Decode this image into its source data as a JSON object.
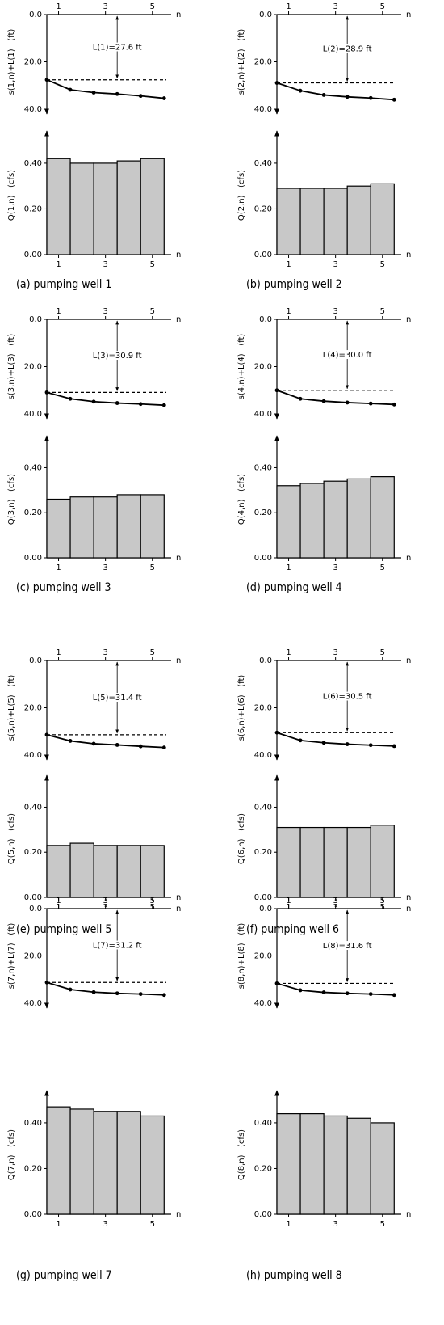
{
  "chart_data": [
    {
      "type": "line",
      "ylabel": "s(1,n)+L(1)   (ft)",
      "xlabel": "n",
      "x": [
        0.5,
        1.5,
        2.5,
        3.5,
        4.5,
        5.5
      ],
      "values": [
        27.6,
        31.8,
        33.0,
        33.6,
        34.4,
        35.4
      ],
      "reference": 27.6,
      "annotation": "L(1)=27.6 ft",
      "xlim": [
        0.5,
        5.8
      ],
      "xticks": [
        1,
        3,
        5
      ],
      "ylim": [
        0,
        40
      ],
      "yticks": [
        {
          "value": 0,
          "label": "0.0"
        },
        {
          "value": 20,
          "label": "20.0"
        },
        {
          "value": 40,
          "label": "40.0"
        }
      ],
      "invert_y": true,
      "color": "#000000"
    },
    {
      "type": "bar",
      "ylabel": "Q(1,n)   (cfs)",
      "xlabel": "n",
      "x": [
        1,
        2,
        3,
        4,
        5
      ],
      "values": [
        0.42,
        0.4,
        0.4,
        0.41,
        0.42
      ],
      "xlim": [
        0.5,
        5.8
      ],
      "xticks": [
        1,
        3,
        5
      ],
      "ylim": [
        0,
        0.52
      ],
      "yticks": [
        {
          "value": 0,
          "label": "0.00"
        },
        {
          "value": 0.2,
          "label": "0.20"
        },
        {
          "value": 0.4,
          "label": "0.40"
        }
      ],
      "color": "#c8c8c8",
      "caption": "(a) pumping well 1"
    },
    {
      "type": "line",
      "ylabel": "s(2,n)+L(2)   (ft)",
      "xlabel": "n",
      "x": [
        0.5,
        1.5,
        2.5,
        3.5,
        4.5,
        5.5
      ],
      "values": [
        28.9,
        32.2,
        34.0,
        34.8,
        35.3,
        36.0
      ],
      "reference": 28.9,
      "annotation": "L(2)=28.9 ft",
      "xlim": [
        0.5,
        5.8
      ],
      "xticks": [
        1,
        3,
        5
      ],
      "ylim": [
        0,
        40
      ],
      "yticks": [
        {
          "value": 0,
          "label": "0.0"
        },
        {
          "value": 20,
          "label": "20.0"
        },
        {
          "value": 40,
          "label": "40.0"
        }
      ],
      "invert_y": true,
      "color": "#000000"
    },
    {
      "type": "bar",
      "ylabel": "Q(2,n)   (cfs)",
      "xlabel": "n",
      "x": [
        1,
        2,
        3,
        4,
        5
      ],
      "values": [
        0.29,
        0.29,
        0.29,
        0.3,
        0.31
      ],
      "xlim": [
        0.5,
        5.8
      ],
      "xticks": [
        1,
        3,
        5
      ],
      "ylim": [
        0,
        0.52
      ],
      "yticks": [
        {
          "value": 0,
          "label": "0.00"
        },
        {
          "value": 0.2,
          "label": "0.20"
        },
        {
          "value": 0.4,
          "label": "0.40"
        }
      ],
      "color": "#c8c8c8",
      "caption": "(b) pumping well 2"
    },
    {
      "type": "line",
      "ylabel": "s(3,n)+L(3)   (ft)",
      "xlabel": "n",
      "x": [
        0.5,
        1.5,
        2.5,
        3.5,
        4.5,
        5.5
      ],
      "values": [
        30.9,
        33.6,
        34.8,
        35.4,
        35.8,
        36.3
      ],
      "reference": 30.9,
      "annotation": "L(3)=30.9 ft",
      "xlim": [
        0.5,
        5.8
      ],
      "xticks": [
        1,
        3,
        5
      ],
      "ylim": [
        0,
        40
      ],
      "yticks": [
        {
          "value": 0,
          "label": "0.0"
        },
        {
          "value": 20,
          "label": "20.0"
        },
        {
          "value": 40,
          "label": "40.0"
        }
      ],
      "invert_y": true,
      "color": "#000000"
    },
    {
      "type": "bar",
      "ylabel": "Q(3,n)   (cfs)",
      "xlabel": "n",
      "x": [
        1,
        2,
        3,
        4,
        5
      ],
      "values": [
        0.26,
        0.27,
        0.27,
        0.28,
        0.28
      ],
      "xlim": [
        0.5,
        5.8
      ],
      "xticks": [
        1,
        3,
        5
      ],
      "ylim": [
        0,
        0.52
      ],
      "yticks": [
        {
          "value": 0,
          "label": "0.00"
        },
        {
          "value": 0.2,
          "label": "0.20"
        },
        {
          "value": 0.4,
          "label": "0.40"
        }
      ],
      "color": "#c8c8c8",
      "caption": "(c) pumping well 3"
    },
    {
      "type": "line",
      "ylabel": "s(4,n)+L(4)   (ft)",
      "xlabel": "n",
      "x": [
        0.5,
        1.5,
        2.5,
        3.5,
        4.5,
        5.5
      ],
      "values": [
        30.0,
        33.6,
        34.6,
        35.2,
        35.6,
        36.0
      ],
      "reference": 30.0,
      "annotation": "L(4)=30.0 ft",
      "xlim": [
        0.5,
        5.8
      ],
      "xticks": [
        1,
        3,
        5
      ],
      "ylim": [
        0,
        40
      ],
      "yticks": [
        {
          "value": 0,
          "label": "0.0"
        },
        {
          "value": 20,
          "label": "20.0"
        },
        {
          "value": 40,
          "label": "40.0"
        }
      ],
      "invert_y": true,
      "color": "#000000"
    },
    {
      "type": "bar",
      "ylabel": "Q(4,n)   (cfs)",
      "xlabel": "n",
      "x": [
        1,
        2,
        3,
        4,
        5
      ],
      "values": [
        0.32,
        0.33,
        0.34,
        0.35,
        0.36
      ],
      "xlim": [
        0.5,
        5.8
      ],
      "xticks": [
        1,
        3,
        5
      ],
      "ylim": [
        0,
        0.52
      ],
      "yticks": [
        {
          "value": 0,
          "label": "0.00"
        },
        {
          "value": 0.2,
          "label": "0.20"
        },
        {
          "value": 0.4,
          "label": "0.40"
        }
      ],
      "color": "#c8c8c8",
      "caption": "(d) pumping well 4"
    },
    {
      "type": "line",
      "ylabel": "s(5,n)+L(5)   (ft)",
      "xlabel": "n",
      "x": [
        0.5,
        1.5,
        2.5,
        3.5,
        4.5,
        5.5
      ],
      "values": [
        31.4,
        34.0,
        35.2,
        35.7,
        36.3,
        36.8
      ],
      "reference": 31.4,
      "annotation": "L(5)=31.4 ft",
      "xlim": [
        0.5,
        5.8
      ],
      "xticks": [
        1,
        3,
        5
      ],
      "ylim": [
        0,
        40
      ],
      "yticks": [
        {
          "value": 0,
          "label": "0.0"
        },
        {
          "value": 20,
          "label": "20.0"
        },
        {
          "value": 40,
          "label": "40.0"
        }
      ],
      "invert_y": true,
      "color": "#000000"
    },
    {
      "type": "bar",
      "ylabel": "Q(5,n)   (cfs)",
      "xlabel": "n",
      "x": [
        1,
        2,
        3,
        4,
        5
      ],
      "values": [
        0.23,
        0.24,
        0.23,
        0.23,
        0.23
      ],
      "xlim": [
        0.5,
        5.8
      ],
      "xticks": [
        1,
        3,
        5
      ],
      "ylim": [
        0,
        0.52
      ],
      "yticks": [
        {
          "value": 0,
          "label": "0.00"
        },
        {
          "value": 0.2,
          "label": "0.20"
        },
        {
          "value": 0.4,
          "label": "0.40"
        }
      ],
      "color": "#c8c8c8",
      "caption": "(e) pumping well 5"
    },
    {
      "type": "line",
      "ylabel": "s(6,n)+L(6)   (ft)",
      "xlabel": "n",
      "x": [
        0.5,
        1.5,
        2.5,
        3.5,
        4.5,
        5.5
      ],
      "values": [
        30.5,
        33.8,
        34.8,
        35.4,
        35.8,
        36.2
      ],
      "reference": 30.5,
      "annotation": "L(6)=30.5 ft",
      "xlim": [
        0.5,
        5.8
      ],
      "xticks": [
        1,
        3,
        5
      ],
      "ylim": [
        0,
        40
      ],
      "yticks": [
        {
          "value": 0,
          "label": "0.0"
        },
        {
          "value": 20,
          "label": "20.0"
        },
        {
          "value": 40,
          "label": "40.0"
        }
      ],
      "invert_y": true,
      "color": "#000000"
    },
    {
      "type": "bar",
      "ylabel": "Q(6,n)   (cfs)",
      "xlabel": "n",
      "x": [
        1,
        2,
        3,
        4,
        5
      ],
      "values": [
        0.31,
        0.31,
        0.31,
        0.31,
        0.32
      ],
      "xlim": [
        0.5,
        5.8
      ],
      "xticks": [
        1,
        3,
        5
      ],
      "ylim": [
        0,
        0.52
      ],
      "yticks": [
        {
          "value": 0,
          "label": "0.00"
        },
        {
          "value": 0.2,
          "label": "0.20"
        },
        {
          "value": 0.4,
          "label": "0.40"
        }
      ],
      "color": "#c8c8c8",
      "caption": "(f) pumping well 6"
    },
    {
      "type": "line",
      "ylabel": "s(7,n)+L(7)   (ft)",
      "xlabel": "n",
      "x": [
        0.5,
        1.5,
        2.5,
        3.5,
        4.5,
        5.5
      ],
      "values": [
        31.2,
        34.2,
        35.3,
        35.8,
        36.1,
        36.5
      ],
      "reference": 31.2,
      "annotation": "L(7)=31.2 ft",
      "xlim": [
        0.5,
        5.8
      ],
      "xticks": [
        1,
        3,
        5
      ],
      "ylim": [
        0,
        40
      ],
      "yticks": [
        {
          "value": 0,
          "label": "0.0"
        },
        {
          "value": 20,
          "label": "20.0"
        },
        {
          "value": 40,
          "label": "40.0"
        }
      ],
      "invert_y": true,
      "color": "#000000"
    },
    {
      "type": "bar",
      "ylabel": "Q(7,n)   (cfs)",
      "xlabel": "n",
      "x": [
        1,
        2,
        3,
        4,
        5
      ],
      "values": [
        0.47,
        0.46,
        0.45,
        0.45,
        0.43
      ],
      "xlim": [
        0.5,
        5.8
      ],
      "xticks": [
        1,
        3,
        5
      ],
      "ylim": [
        0,
        0.52
      ],
      "yticks": [
        {
          "value": 0,
          "label": "0.00"
        },
        {
          "value": 0.2,
          "label": "0.20"
        },
        {
          "value": 0.4,
          "label": "0.40"
        }
      ],
      "color": "#c8c8c8",
      "caption": "(g) pumping well 7"
    },
    {
      "type": "line",
      "ylabel": "s(8,n)+L(8)   (ft)",
      "xlabel": "n",
      "x": [
        0.5,
        1.5,
        2.5,
        3.5,
        4.5,
        5.5
      ],
      "values": [
        31.6,
        34.5,
        35.4,
        35.8,
        36.1,
        36.5
      ],
      "reference": 31.6,
      "annotation": "L(8)=31.6 ft",
      "xlim": [
        0.5,
        5.8
      ],
      "xticks": [
        1,
        3,
        5
      ],
      "ylim": [
        0,
        40
      ],
      "yticks": [
        {
          "value": 0,
          "label": "0.0"
        },
        {
          "value": 20,
          "label": "20.0"
        },
        {
          "value": 40,
          "label": "40.0"
        }
      ],
      "invert_y": true,
      "color": "#000000"
    },
    {
      "type": "bar",
      "ylabel": "Q(8,n)   (cfs)",
      "xlabel": "n",
      "x": [
        1,
        2,
        3,
        4,
        5
      ],
      "values": [
        0.44,
        0.44,
        0.43,
        0.42,
        0.4
      ],
      "xlim": [
        0.5,
        5.8
      ],
      "xticks": [
        1,
        3,
        5
      ],
      "ylim": [
        0,
        0.52
      ],
      "yticks": [
        {
          "value": 0,
          "label": "0.00"
        },
        {
          "value": 0.2,
          "label": "0.20"
        },
        {
          "value": 0.4,
          "label": "0.40"
        }
      ],
      "color": "#c8c8c8",
      "caption": "(h) pumping well 8"
    }
  ]
}
